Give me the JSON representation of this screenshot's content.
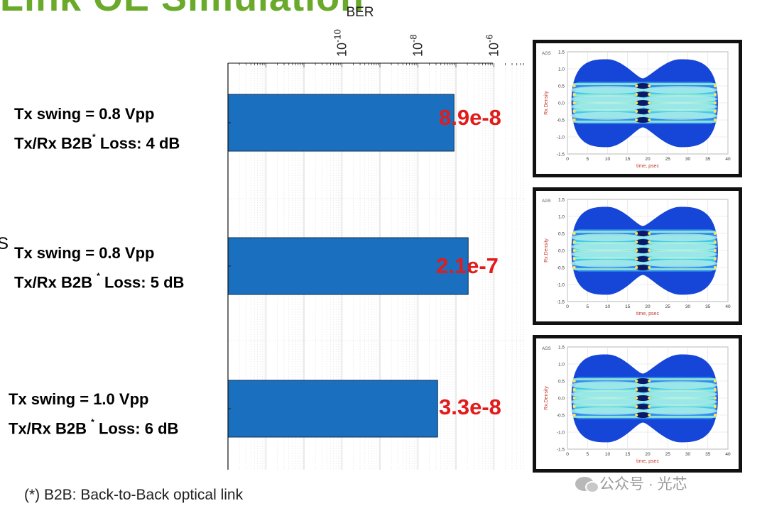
{
  "slide": {
    "title_fragment": "Link OE Simulation",
    "side_mark": "S",
    "footnote": "(*) B2B: Back-to-Back optical link",
    "watermark": "公众号 · 光芯"
  },
  "chart_data": {
    "type": "bar",
    "orientation": "horizontal",
    "title": "BER",
    "xscale": "log",
    "xlim": [
      1e-13,
      1e-05
    ],
    "xticks": [
      {
        "value": 1e-10,
        "base": "10",
        "exp": "-10"
      },
      {
        "value": 1e-08,
        "base": "10",
        "exp": "-8"
      },
      {
        "value": 1e-06,
        "base": "10",
        "exp": "-6"
      }
    ],
    "grid": true,
    "bar_color": "#1a6fbf",
    "value_label_color": "#e21b1b",
    "categories": [
      {
        "line1": "Tx swing = 0.8 Vpp",
        "line2_pre": "Tx/Rx B2B",
        "line2_sup": "*",
        "line2_post": " Loss: 4 dB"
      },
      {
        "line1": "Tx swing = 0.8 Vpp",
        "line2_pre": "Tx/Rx B2B ",
        "line2_sup": "*",
        "line2_post": " Loss: 5 dB"
      },
      {
        "line1": "Tx swing = 1.0 Vpp",
        "line2_pre": "Tx/Rx B2B ",
        "line2_sup": "*",
        "line2_post": " Loss: 6 dB"
      }
    ],
    "values": [
      8.9e-08,
      2.1e-07,
      3.3e-08
    ],
    "value_labels": [
      "8.9e-8",
      "2.1e-7",
      "3.3e-8"
    ]
  },
  "eye_diagrams": [
    {
      "corner_label": "AGS",
      "ylabel": "Rx.Density",
      "xlabel": "time, psec",
      "yticks": [
        "1.5",
        "1.0",
        "0.5",
        "0.0",
        "-0.5",
        "-1.0",
        "-1.5"
      ],
      "xticks": [
        "0",
        "5",
        "10",
        "15",
        "20",
        "25",
        "30",
        "35",
        "40"
      ]
    },
    {
      "corner_label": "AGS",
      "ylabel": "Rx.Density",
      "xlabel": "time, psec",
      "yticks": [
        "1.5",
        "1.0",
        "0.5",
        "0.0",
        "-0.5",
        "-1.0",
        "-1.5"
      ],
      "xticks": [
        "0",
        "5",
        "10",
        "15",
        "20",
        "25",
        "30",
        "35",
        "40"
      ]
    },
    {
      "corner_label": "AGS",
      "ylabel": "Rx.Density",
      "xlabel": "time, psec",
      "yticks": [
        "1.5",
        "1.0",
        "0.5",
        "0.0",
        "-0.5",
        "-1.0",
        "-1.5"
      ],
      "xticks": [
        "0",
        "5",
        "10",
        "15",
        "20",
        "25",
        "30",
        "35",
        "40"
      ]
    }
  ]
}
